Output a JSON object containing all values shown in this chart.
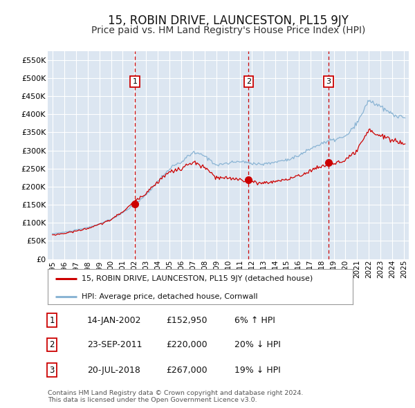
{
  "title": "15, ROBIN DRIVE, LAUNCESTON, PL15 9JY",
  "subtitle": "Price paid vs. HM Land Registry's House Price Index (HPI)",
  "title_fontsize": 12,
  "subtitle_fontsize": 10,
  "background_color": "#ffffff",
  "plot_bg_color": "#dce6f1",
  "grid_color": "#ffffff",
  "sale_dates": [
    2002.04,
    2011.73,
    2018.55
  ],
  "sale_prices": [
    152950,
    220000,
    267000
  ],
  "sale_labels": [
    "1",
    "2",
    "3"
  ],
  "sale_box_color": "#cc0000",
  "legend_entries": [
    "15, ROBIN DRIVE, LAUNCESTON, PL15 9JY (detached house)",
    "HPI: Average price, detached house, Cornwall"
  ],
  "legend_colors": [
    "#cc0000",
    "#8ab4d4"
  ],
  "table_data": [
    [
      "1",
      "14-JAN-2002",
      "£152,950",
      "6% ↑ HPI"
    ],
    [
      "2",
      "23-SEP-2011",
      "£220,000",
      "20% ↓ HPI"
    ],
    [
      "3",
      "20-JUL-2018",
      "£267,000",
      "19% ↓ HPI"
    ]
  ],
  "footnote": "Contains HM Land Registry data © Crown copyright and database right 2024.\nThis data is licensed under the Open Government Licence v3.0.",
  "hpi_line_color": "#8ab4d4",
  "price_line_color": "#cc0000"
}
